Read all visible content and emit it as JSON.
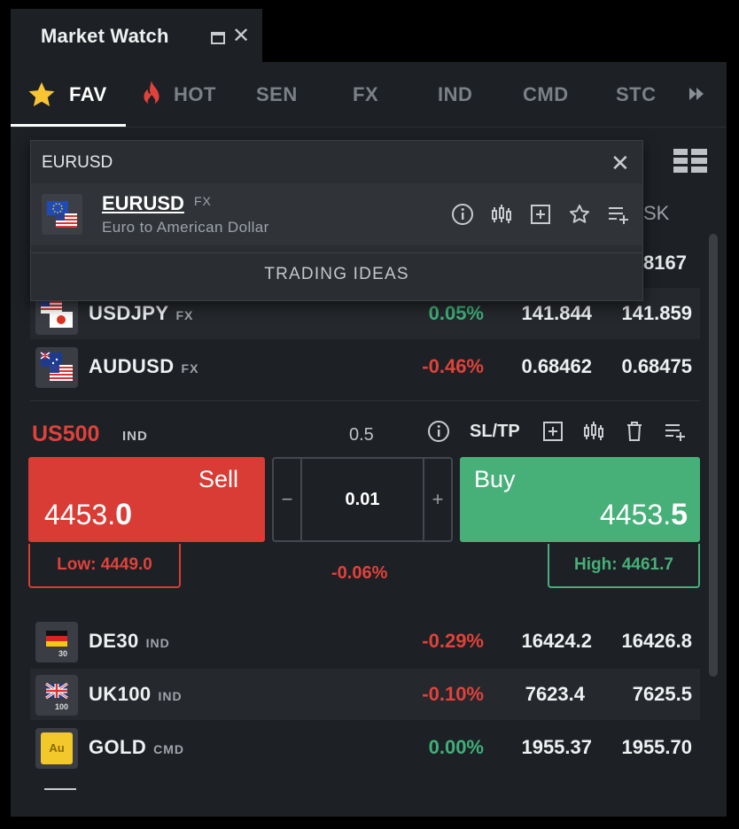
{
  "window": {
    "title": "Market Watch"
  },
  "tabs": [
    {
      "label": "FAV",
      "icon": "star-icon",
      "active": true
    },
    {
      "label": "HOT",
      "icon": "fire-icon"
    },
    {
      "label": "SEN"
    },
    {
      "label": "FX"
    },
    {
      "label": "IND"
    },
    {
      "label": "CMD"
    },
    {
      "label": "STC"
    }
  ],
  "search": {
    "value": "EURUSD",
    "result": {
      "symbol": "EURUSD",
      "type": "FX",
      "description": "Euro to American Dollar",
      "actions": [
        "info-icon",
        "chart-icon",
        "add-icon",
        "favorite-star-icon",
        "add-to-list-icon"
      ]
    },
    "trading_ideas_label": "TRADING IDEAS"
  },
  "hidden_header": {
    "ask_fragment": "SK",
    "ask_value_fragment": "8167"
  },
  "rows_top": [
    {
      "symbol": "USDJPY",
      "type": "FX",
      "change": "0.05%",
      "bid": "141.844",
      "ask": "141.859",
      "trend": "up"
    },
    {
      "symbol": "AUDUSD",
      "type": "FX",
      "change": "-0.46%",
      "bid": "0.68462",
      "ask": "0.68475",
      "trend": "down"
    }
  ],
  "ticket": {
    "symbol": "US500",
    "type": "IND",
    "spread": "0.5",
    "sltp_label": "SL/TP",
    "sell": {
      "label": "Sell",
      "price_main": "4453.",
      "price_big": "0"
    },
    "buy": {
      "label": "Buy",
      "price_main": "4453.",
      "price_big": "5"
    },
    "volume": "0.01",
    "minus": "−",
    "plus": "+",
    "low": "Low: 4449.0",
    "high": "High: 4461.7",
    "change": "-0.06%"
  },
  "rows_bottom": [
    {
      "symbol": "DE30",
      "type": "IND",
      "change": "-0.29%",
      "bid": "16424.2",
      "ask": "16426.8",
      "trend": "down",
      "flag_label": "30"
    },
    {
      "symbol": "UK100",
      "type": "IND",
      "change": "-0.10%",
      "bid": "7623.4",
      "ask": "7625.5",
      "trend": "down",
      "flag_label": "100"
    },
    {
      "symbol": "GOLD",
      "type": "CMD",
      "change": "0.00%",
      "bid": "1955.37",
      "ask": "1955.70",
      "trend": "flat",
      "flag_label": "Au"
    }
  ],
  "colors": {
    "positive": "#3fb07a",
    "negative": "#e0423b",
    "sell": "#d93c35",
    "buy": "#47b079",
    "panel": "#1d2024"
  }
}
